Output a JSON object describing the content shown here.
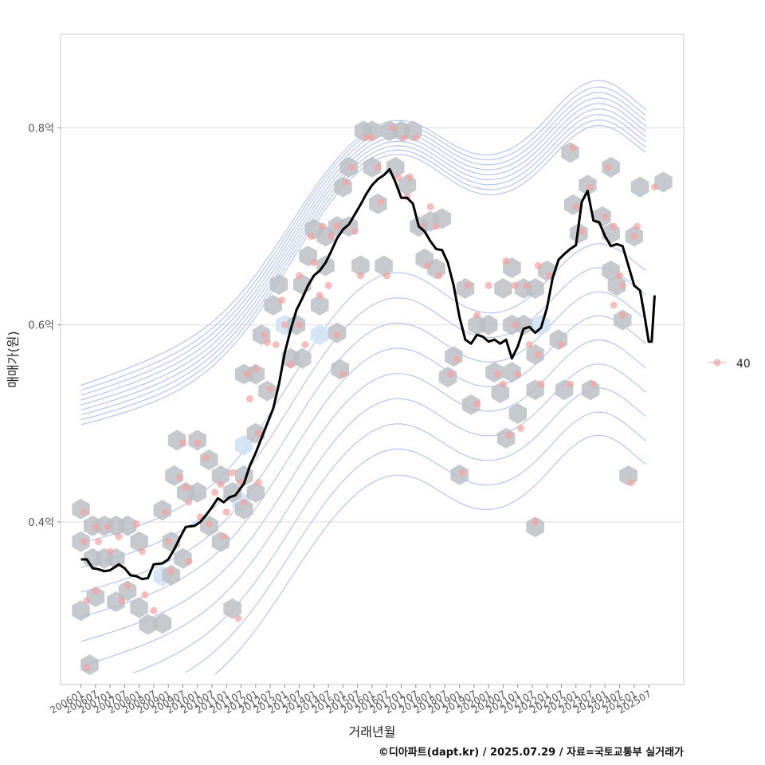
{
  "caption": "©디아파트(dapt.kr) / 2025.07.29 / 자료=국토교통부 실거래가",
  "colors": {
    "line": "#000000",
    "hex": "#b9bec3",
    "hex_highlight": "#cfe0f3",
    "contour": "#aabbee",
    "points": "#f4a3a3",
    "grid": "#dcdcdc"
  },
  "chart_data": {
    "type": "line",
    "xlabel": "거래년월",
    "ylabel": "매매가(원)",
    "x_tick_labels": [
      "200601",
      "200607",
      "200701",
      "200707",
      "200801",
      "200807",
      "200901",
      "200907",
      "201001",
      "201007",
      "201101",
      "201107",
      "201201",
      "201207",
      "201301",
      "201307",
      "201401",
      "201407",
      "201501",
      "201507",
      "201601",
      "201607",
      "201701",
      "201707",
      "201801",
      "201807",
      "201901",
      "201907",
      "202001",
      "202007",
      "202101",
      "202107",
      "202201",
      "202207",
      "202301",
      "202307",
      "202401",
      "202407",
      "202501",
      "202507"
    ],
    "y_ticks": [
      {
        "value": 0.4,
        "label": "0.4억"
      },
      {
        "value": 0.6,
        "label": "0.6억"
      },
      {
        "value": 0.8,
        "label": "0.8억"
      }
    ],
    "ylim": [
      0.235,
      0.895
    ],
    "xlim": [
      2005.3,
      2026.7
    ],
    "grid": true,
    "legend": {
      "position": "right",
      "entries": [
        {
          "label": "40"
        }
      ]
    },
    "moving_average": [
      [
        2006.0,
        0.362
      ],
      [
        2006.2,
        0.362
      ],
      [
        2006.4,
        0.353
      ],
      [
        2006.6,
        0.352
      ],
      [
        2006.8,
        0.35
      ],
      [
        2007.0,
        0.351
      ],
      [
        2007.3,
        0.357
      ],
      [
        2007.5,
        0.353
      ],
      [
        2007.7,
        0.346
      ],
      [
        2007.9,
        0.345
      ],
      [
        2008.1,
        0.342
      ],
      [
        2008.3,
        0.343
      ],
      [
        2008.5,
        0.357
      ],
      [
        2008.8,
        0.358
      ],
      [
        2009.0,
        0.362
      ],
      [
        2009.2,
        0.372
      ],
      [
        2009.4,
        0.384
      ],
      [
        2009.6,
        0.395
      ],
      [
        2009.9,
        0.396
      ],
      [
        2010.1,
        0.4
      ],
      [
        2010.3,
        0.407
      ],
      [
        2010.5,
        0.415
      ],
      [
        2010.7,
        0.424
      ],
      [
        2010.9,
        0.42
      ],
      [
        2011.1,
        0.425
      ],
      [
        2011.3,
        0.427
      ],
      [
        2011.6,
        0.439
      ],
      [
        2011.8,
        0.457
      ],
      [
        2012.0,
        0.47
      ],
      [
        2012.2,
        0.485
      ],
      [
        2012.4,
        0.5
      ],
      [
        2012.6,
        0.515
      ],
      [
        2012.8,
        0.54
      ],
      [
        2013.0,
        0.572
      ],
      [
        2013.2,
        0.595
      ],
      [
        2013.4,
        0.615
      ],
      [
        2013.6,
        0.627
      ],
      [
        2013.8,
        0.64
      ],
      [
        2014.0,
        0.65
      ],
      [
        2014.2,
        0.655
      ],
      [
        2014.4,
        0.663
      ],
      [
        2014.6,
        0.675
      ],
      [
        2014.8,
        0.688
      ],
      [
        2015.0,
        0.697
      ],
      [
        2015.2,
        0.702
      ],
      [
        2015.4,
        0.712
      ],
      [
        2015.6,
        0.722
      ],
      [
        2015.8,
        0.733
      ],
      [
        2016.0,
        0.742
      ],
      [
        2016.2,
        0.748
      ],
      [
        2016.4,
        0.752
      ],
      [
        2016.6,
        0.758
      ],
      [
        2016.8,
        0.745
      ],
      [
        2017.0,
        0.729
      ],
      [
        2017.2,
        0.729
      ],
      [
        2017.4,
        0.723
      ],
      [
        2017.6,
        0.7
      ],
      [
        2017.8,
        0.695
      ],
      [
        2018.0,
        0.685
      ],
      [
        2018.2,
        0.677
      ],
      [
        2018.4,
        0.676
      ],
      [
        2018.6,
        0.663
      ],
      [
        2018.8,
        0.64
      ],
      [
        2019.0,
        0.608
      ],
      [
        2019.2,
        0.585
      ],
      [
        2019.4,
        0.581
      ],
      [
        2019.6,
        0.59
      ],
      [
        2019.8,
        0.588
      ],
      [
        2020.0,
        0.583
      ],
      [
        2020.2,
        0.585
      ],
      [
        2020.4,
        0.581
      ],
      [
        2020.6,
        0.585
      ],
      [
        2020.8,
        0.566
      ],
      [
        2021.0,
        0.578
      ],
      [
        2021.2,
        0.596
      ],
      [
        2021.4,
        0.598
      ],
      [
        2021.6,
        0.592
      ],
      [
        2021.8,
        0.597
      ],
      [
        2022.0,
        0.617
      ],
      [
        2022.2,
        0.648
      ],
      [
        2022.4,
        0.666
      ],
      [
        2022.6,
        0.672
      ],
      [
        2022.8,
        0.677
      ],
      [
        2023.0,
        0.681
      ],
      [
        2023.2,
        0.725
      ],
      [
        2023.4,
        0.736
      ],
      [
        2023.6,
        0.706
      ],
      [
        2023.8,
        0.704
      ],
      [
        2024.0,
        0.69
      ],
      [
        2024.2,
        0.68
      ],
      [
        2024.4,
        0.682
      ],
      [
        2024.6,
        0.68
      ],
      [
        2024.8,
        0.66
      ],
      [
        2025.0,
        0.64
      ],
      [
        2025.2,
        0.635
      ],
      [
        2025.35,
        0.61
      ],
      [
        2025.5,
        0.583
      ],
      [
        2025.6,
        0.583
      ],
      [
        2025.7,
        0.63
      ]
    ],
    "hexbin_centers": [
      [
        2006.0,
        0.413
      ],
      [
        2006.0,
        0.38
      ],
      [
        2006.0,
        0.31
      ],
      [
        2006.3,
        0.255
      ],
      [
        2006.4,
        0.396
      ],
      [
        2006.4,
        0.363
      ],
      [
        2006.5,
        0.324
      ],
      [
        2006.8,
        0.396
      ],
      [
        2006.8,
        0.363
      ],
      [
        2007.2,
        0.396
      ],
      [
        2007.2,
        0.363
      ],
      [
        2007.2,
        0.319
      ],
      [
        2007.6,
        0.396
      ],
      [
        2007.6,
        0.33
      ],
      [
        2008.0,
        0.38
      ],
      [
        2008.0,
        0.313
      ],
      [
        2008.3,
        0.296
      ],
      [
        2008.8,
        0.412
      ],
      [
        2008.8,
        0.297
      ],
      [
        2009.1,
        0.38
      ],
      [
        2009.1,
        0.346
      ],
      [
        2009.2,
        0.447
      ],
      [
        2009.3,
        0.483
      ],
      [
        2009.5,
        0.363
      ],
      [
        2009.6,
        0.43
      ],
      [
        2010.0,
        0.43
      ],
      [
        2010.0,
        0.483
      ],
      [
        2010.4,
        0.463
      ],
      [
        2010.4,
        0.396
      ],
      [
        2010.8,
        0.447
      ],
      [
        2010.8,
        0.38
      ],
      [
        2011.2,
        0.43
      ],
      [
        2011.2,
        0.312
      ],
      [
        2011.6,
        0.447
      ],
      [
        2011.6,
        0.413
      ],
      [
        2011.6,
        0.55
      ],
      [
        2012.0,
        0.55
      ],
      [
        2012.0,
        0.49
      ],
      [
        2012.0,
        0.43
      ],
      [
        2012.2,
        0.59
      ],
      [
        2012.4,
        0.533
      ],
      [
        2012.6,
        0.62
      ],
      [
        2012.8,
        0.641
      ],
      [
        2013.2,
        0.566
      ],
      [
        2013.4,
        0.6
      ],
      [
        2013.6,
        0.566
      ],
      [
        2013.6,
        0.641
      ],
      [
        2013.8,
        0.67
      ],
      [
        2014.0,
        0.697
      ],
      [
        2014.2,
        0.62
      ],
      [
        2014.4,
        0.66
      ],
      [
        2014.4,
        0.69
      ],
      [
        2014.8,
        0.7
      ],
      [
        2014.8,
        0.592
      ],
      [
        2014.9,
        0.555
      ],
      [
        2015.0,
        0.74
      ],
      [
        2015.2,
        0.7
      ],
      [
        2015.6,
        0.66
      ],
      [
        2015.7,
        0.797
      ],
      [
        2015.2,
        0.76
      ],
      [
        2016.0,
        0.797
      ],
      [
        2016.0,
        0.76
      ],
      [
        2016.2,
        0.723
      ],
      [
        2016.4,
        0.66
      ],
      [
        2016.6,
        0.797
      ],
      [
        2016.8,
        0.76
      ],
      [
        2017.0,
        0.797
      ],
      [
        2017.2,
        0.742
      ],
      [
        2017.4,
        0.797
      ],
      [
        2017.6,
        0.7
      ],
      [
        2017.8,
        0.667
      ],
      [
        2018.0,
        0.705
      ],
      [
        2018.4,
        0.708
      ],
      [
        2018.2,
        0.657
      ],
      [
        2018.6,
        0.547
      ],
      [
        2018.8,
        0.568
      ],
      [
        2019.0,
        0.448
      ],
      [
        2019.2,
        0.637
      ],
      [
        2019.6,
        0.6
      ],
      [
        2019.4,
        0.519
      ],
      [
        2020.0,
        0.6
      ],
      [
        2020.2,
        0.552
      ],
      [
        2020.4,
        0.531
      ],
      [
        2020.5,
        0.637
      ],
      [
        2020.8,
        0.658
      ],
      [
        2020.8,
        0.6
      ],
      [
        2020.8,
        0.552
      ],
      [
        2021.0,
        0.51
      ],
      [
        2020.6,
        0.485
      ],
      [
        2021.2,
        0.637
      ],
      [
        2021.2,
        0.6
      ],
      [
        2021.6,
        0.637
      ],
      [
        2021.6,
        0.57
      ],
      [
        2021.6,
        0.534
      ],
      [
        2021.6,
        0.395
      ],
      [
        2022.0,
        0.655
      ],
      [
        2022.4,
        0.585
      ],
      [
        2022.6,
        0.534
      ],
      [
        2022.8,
        0.775
      ],
      [
        2022.9,
        0.722
      ],
      [
        2023.1,
        0.693
      ],
      [
        2023.4,
        0.742
      ],
      [
        2023.5,
        0.534
      ],
      [
        2023.9,
        0.71
      ],
      [
        2024.2,
        0.76
      ],
      [
        2024.2,
        0.693
      ],
      [
        2024.2,
        0.655
      ],
      [
        2024.4,
        0.64
      ],
      [
        2024.6,
        0.605
      ],
      [
        2024.8,
        0.447
      ],
      [
        2025.0,
        0.69
      ],
      [
        2025.2,
        0.74
      ],
      [
        2026.0,
        0.745
      ]
    ],
    "hexbin_highlight": [
      [
        2008.8,
        0.345
      ],
      [
        2013.0,
        0.6
      ],
      [
        2011.6,
        0.478
      ],
      [
        2021.8,
        0.6
      ],
      [
        2011.5,
        0.42
      ],
      [
        2014.2,
        0.59
      ]
    ],
    "points": [
      [
        2006.1,
        0.41
      ],
      [
        2006.1,
        0.38
      ],
      [
        2006.2,
        0.32
      ],
      [
        2006.2,
        0.252
      ],
      [
        2006.5,
        0.395
      ],
      [
        2006.6,
        0.38
      ],
      [
        2006.5,
        0.33
      ],
      [
        2006.9,
        0.395
      ],
      [
        2007.0,
        0.37
      ],
      [
        2007.3,
        0.385
      ],
      [
        2007.4,
        0.32
      ],
      [
        2007.6,
        0.335
      ],
      [
        2007.9,
        0.398
      ],
      [
        2008.1,
        0.37
      ],
      [
        2008.2,
        0.326
      ],
      [
        2008.5,
        0.31
      ],
      [
        2008.9,
        0.41
      ],
      [
        2009.0,
        0.38
      ],
      [
        2009.1,
        0.35
      ],
      [
        2009.4,
        0.445
      ],
      [
        2009.5,
        0.48
      ],
      [
        2009.6,
        0.435
      ],
      [
        2009.7,
        0.42
      ],
      [
        2009.7,
        0.36
      ],
      [
        2010.0,
        0.48
      ],
      [
        2010.1,
        0.405
      ],
      [
        2010.3,
        0.465
      ],
      [
        2010.4,
        0.398
      ],
      [
        2010.6,
        0.43
      ],
      [
        2010.8,
        0.438
      ],
      [
        2010.9,
        0.385
      ],
      [
        2011.0,
        0.41
      ],
      [
        2011.2,
        0.45
      ],
      [
        2011.4,
        0.302
      ],
      [
        2011.5,
        0.44
      ],
      [
        2011.6,
        0.42
      ],
      [
        2011.7,
        0.55
      ],
      [
        2011.8,
        0.525
      ],
      [
        2012.0,
        0.555
      ],
      [
        2012.1,
        0.49
      ],
      [
        2012.1,
        0.44
      ],
      [
        2012.3,
        0.59
      ],
      [
        2012.4,
        0.582
      ],
      [
        2012.5,
        0.535
      ],
      [
        2012.7,
        0.58
      ],
      [
        2012.9,
        0.625
      ],
      [
        2013.0,
        0.6
      ],
      [
        2013.2,
        0.56
      ],
      [
        2013.5,
        0.65
      ],
      [
        2013.5,
        0.6
      ],
      [
        2013.7,
        0.58
      ],
      [
        2013.9,
        0.69
      ],
      [
        2014.0,
        0.663
      ],
      [
        2014.2,
        0.63
      ],
      [
        2014.3,
        0.7
      ],
      [
        2014.5,
        0.64
      ],
      [
        2014.6,
        0.69
      ],
      [
        2014.8,
        0.7
      ],
      [
        2014.8,
        0.59
      ],
      [
        2015.0,
        0.55
      ],
      [
        2015.1,
        0.745
      ],
      [
        2015.3,
        0.76
      ],
      [
        2015.4,
        0.695
      ],
      [
        2015.6,
        0.65
      ],
      [
        2015.8,
        0.79
      ],
      [
        2016.0,
        0.79
      ],
      [
        2016.2,
        0.76
      ],
      [
        2016.3,
        0.725
      ],
      [
        2016.5,
        0.65
      ],
      [
        2016.7,
        0.8
      ],
      [
        2016.9,
        0.75
      ],
      [
        2017.1,
        0.79
      ],
      [
        2017.2,
        0.73
      ],
      [
        2017.3,
        0.75
      ],
      [
        2017.5,
        0.79
      ],
      [
        2017.7,
        0.7
      ],
      [
        2017.9,
        0.66
      ],
      [
        2018.0,
        0.72
      ],
      [
        2018.2,
        0.7
      ],
      [
        2018.3,
        0.65
      ],
      [
        2018.7,
        0.55
      ],
      [
        2018.9,
        0.565
      ],
      [
        2019.1,
        0.45
      ],
      [
        2019.3,
        0.64
      ],
      [
        2019.6,
        0.61
      ],
      [
        2019.6,
        0.52
      ],
      [
        2020.0,
        0.64
      ],
      [
        2020.3,
        0.55
      ],
      [
        2020.5,
        0.54
      ],
      [
        2020.6,
        0.665
      ],
      [
        2020.9,
        0.64
      ],
      [
        2020.9,
        0.6
      ],
      [
        2021.0,
        0.55
      ],
      [
        2021.1,
        0.495
      ],
      [
        2020.7,
        0.488
      ],
      [
        2021.3,
        0.64
      ],
      [
        2021.4,
        0.58
      ],
      [
        2021.7,
        0.66
      ],
      [
        2021.7,
        0.57
      ],
      [
        2021.8,
        0.54
      ],
      [
        2021.6,
        0.4
      ],
      [
        2022.1,
        0.65
      ],
      [
        2022.5,
        0.58
      ],
      [
        2022.8,
        0.54
      ],
      [
        2022.9,
        0.78
      ],
      [
        2023.0,
        0.72
      ],
      [
        2023.2,
        0.695
      ],
      [
        2023.5,
        0.74
      ],
      [
        2023.6,
        0.54
      ],
      [
        2024.0,
        0.71
      ],
      [
        2024.1,
        0.76
      ],
      [
        2024.3,
        0.7
      ],
      [
        2024.3,
        0.62
      ],
      [
        2024.5,
        0.65
      ],
      [
        2024.6,
        0.64
      ],
      [
        2024.6,
        0.61
      ],
      [
        2024.9,
        0.44
      ],
      [
        2025.1,
        0.7
      ],
      [
        2025.0,
        0.69
      ],
      [
        2025.7,
        0.74
      ]
    ],
    "contour_levels": [
      {
        "center": 0.355,
        "amp": 0.055,
        "spread": 0.36
      },
      {
        "center": 0.365,
        "amp": 0.05,
        "spread": 0.33
      },
      {
        "center": 0.375,
        "amp": 0.048,
        "spread": 0.3
      },
      {
        "center": 0.385,
        "amp": 0.046,
        "spread": 0.27
      },
      {
        "center": 0.395,
        "amp": 0.044,
        "spread": 0.24
      },
      {
        "center": 0.405,
        "amp": 0.042,
        "spread": 0.21
      },
      {
        "center": 0.415,
        "amp": 0.04,
        "spread": 0.18
      },
      {
        "center": 0.425,
        "amp": 0.038,
        "spread": 0.15
      },
      {
        "center": 0.435,
        "amp": 0.036,
        "spread": 0.12
      }
    ]
  }
}
